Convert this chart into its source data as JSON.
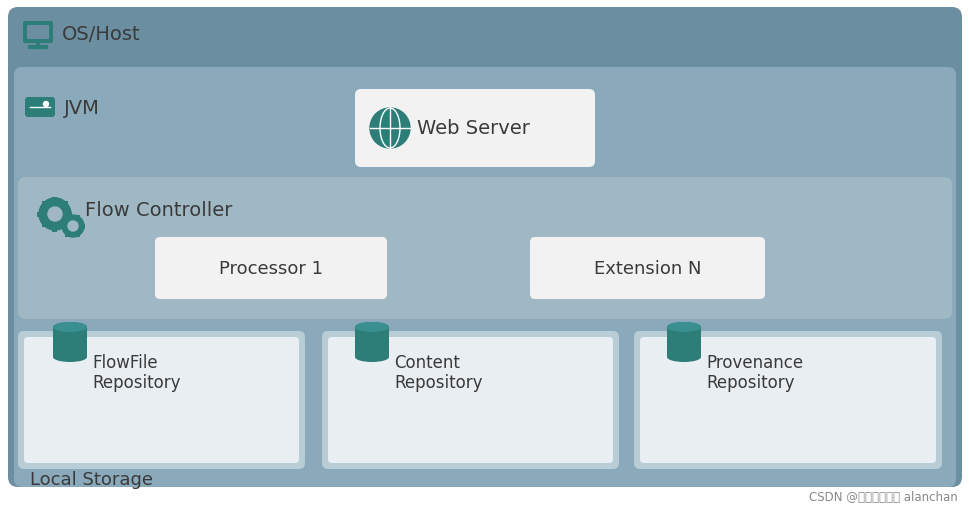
{
  "bg_outer": "#6b8fa0",
  "bg_jvm": "#8aaabb",
  "bg_flow": "#a0b8c4",
  "bg_repo": "#b8cdd6",
  "bg_white_box": "#f0f0f0",
  "bg_white_box2": "#e8e8e8",
  "teal": "#2d7d78",
  "text_dark": "#3a3a3a",
  "text_label": "#444444",
  "watermark_color": "#888888",
  "os_label": "OS/Host",
  "jvm_label": "JVM",
  "fc_label": "Flow Controller",
  "ws_label": "Web Server",
  "p1_label": "Processor 1",
  "en_label": "Extension N",
  "ff_label": "FlowFile\nRepository",
  "ct_label": "Content\nRepository",
  "pv_label": "Provenance\nRepository",
  "ls_label": "Local Storage",
  "watermark": "CSDN @一飘一飘的氵 alanchan"
}
